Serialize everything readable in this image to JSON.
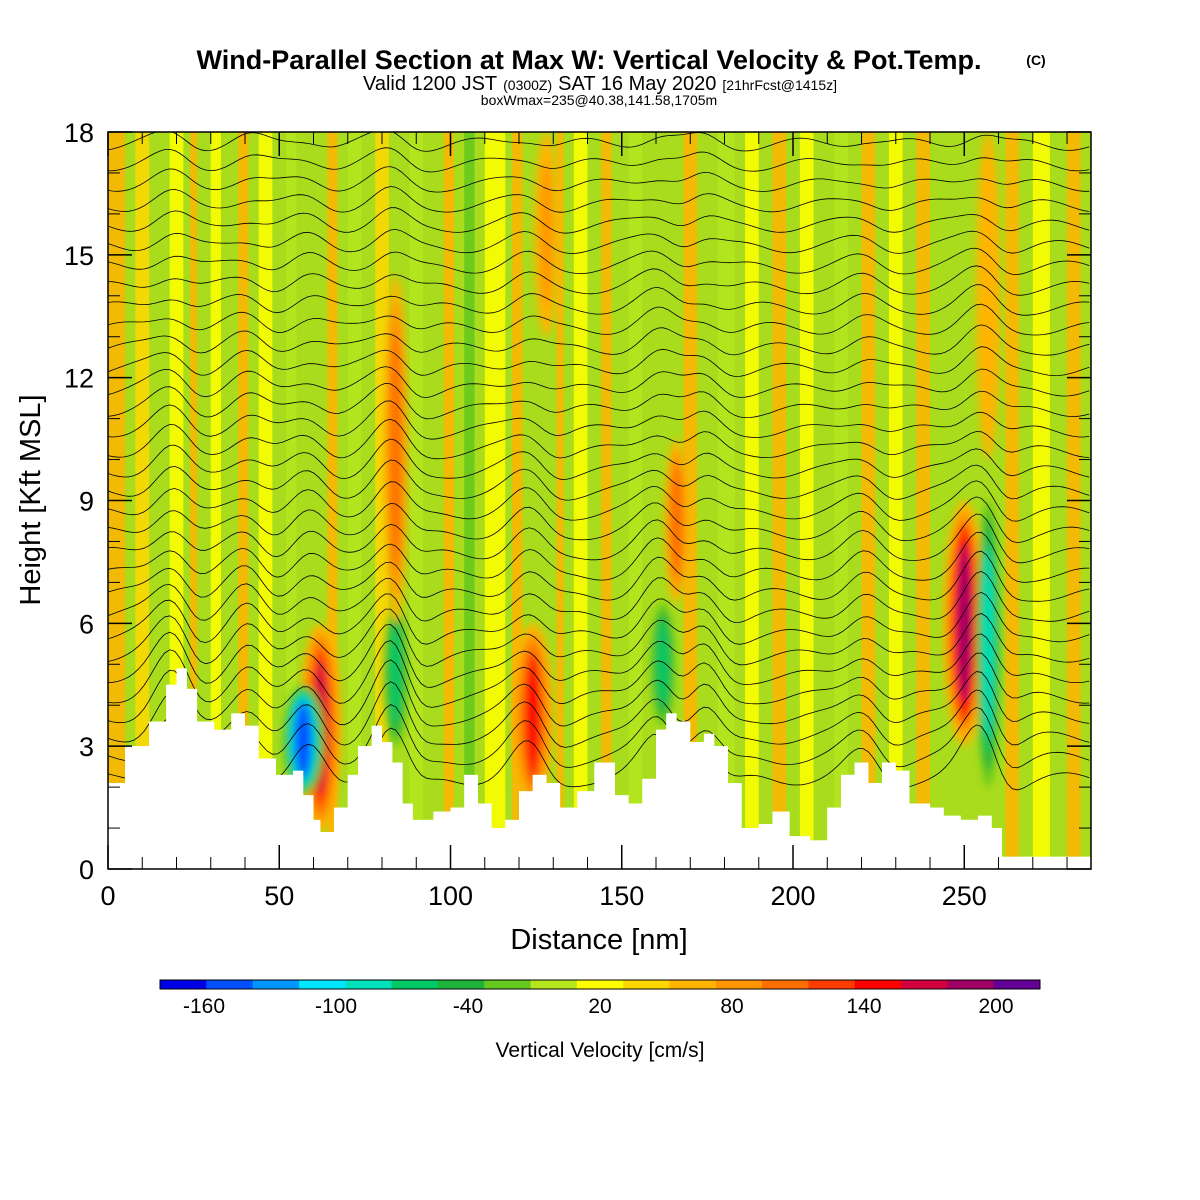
{
  "title": {
    "main": "Wind-Parallel Section at Max W: Vertical Velocity & Pot.Temp.",
    "copyright": "(C)",
    "valid_prefix": "Valid 1200 JST",
    "valid_utc": "(0300Z)",
    "valid_date": "SAT 16 May 2020",
    "forecast": "[21hrFcst@1415z]",
    "box": "boxWmax=235@40.38,141.58,1705m"
  },
  "chart_data": {
    "type": "heatmap",
    "xlabel": "Distance [nm]",
    "ylabel": "Height [Kft MSL]",
    "xlim": [
      0,
      287
    ],
    "ylim": [
      0,
      18
    ],
    "x_ticks": [
      "0",
      "50",
      "100",
      "150",
      "200",
      "250"
    ],
    "y_ticks": [
      "0",
      "3",
      "6",
      "9",
      "12",
      "15",
      "18"
    ],
    "colorbar": {
      "label": "Vertical Velocity [cm/s]",
      "range": [
        -180,
        220
      ],
      "step": 20,
      "tick_labels": [
        "-160",
        "-100",
        "-40",
        "20",
        "80",
        "140",
        "200"
      ],
      "colors": [
        "#0000e6",
        "#0050ff",
        "#0096ff",
        "#00e6ff",
        "#00e1be",
        "#00c864",
        "#1eb43c",
        "#64c81e",
        "#b4e61e",
        "#ffff00",
        "#ffd700",
        "#ffb400",
        "#ff9600",
        "#ff6e00",
        "#ff3c00",
        "#ff0000",
        "#d2003c",
        "#a00064",
        "#640096"
      ]
    },
    "terrain_kft": [
      [
        0,
        2.1
      ],
      [
        5,
        3.0
      ],
      [
        12,
        3.6
      ],
      [
        17,
        4.5
      ],
      [
        20,
        4.9
      ],
      [
        23,
        4.4
      ],
      [
        26,
        3.6
      ],
      [
        31,
        3.4
      ],
      [
        36,
        3.8
      ],
      [
        40,
        3.5
      ],
      [
        44,
        2.7
      ],
      [
        49,
        2.3
      ],
      [
        54,
        2.4
      ],
      [
        57,
        1.8
      ],
      [
        60,
        1.2
      ],
      [
        62,
        0.9
      ],
      [
        66,
        1.5
      ],
      [
        70,
        2.3
      ],
      [
        73,
        3.0
      ],
      [
        77,
        3.5
      ],
      [
        80,
        3.1
      ],
      [
        83,
        2.6
      ],
      [
        86,
        1.6
      ],
      [
        89,
        1.2
      ],
      [
        95,
        1.4
      ],
      [
        100,
        1.5
      ],
      [
        104,
        2.3
      ],
      [
        108,
        1.6
      ],
      [
        112,
        1.0
      ],
      [
        116,
        1.2
      ],
      [
        120,
        1.9
      ],
      [
        124,
        2.3
      ],
      [
        128,
        2.1
      ],
      [
        132,
        1.5
      ],
      [
        137,
        1.9
      ],
      [
        142,
        2.6
      ],
      [
        148,
        1.8
      ],
      [
        152,
        1.6
      ],
      [
        156,
        2.2
      ],
      [
        160,
        3.4
      ],
      [
        163,
        3.8
      ],
      [
        166,
        3.6
      ],
      [
        170,
        3.1
      ],
      [
        174,
        3.3
      ],
      [
        177,
        3.0
      ],
      [
        181,
        2.1
      ],
      [
        185,
        1.0
      ],
      [
        190,
        1.1
      ],
      [
        194,
        1.4
      ],
      [
        199,
        0.8
      ],
      [
        205,
        0.7
      ],
      [
        210,
        1.5
      ],
      [
        214,
        2.3
      ],
      [
        218,
        2.6
      ],
      [
        222,
        2.1
      ],
      [
        226,
        2.6
      ],
      [
        230,
        2.4
      ],
      [
        234,
        1.6
      ],
      [
        240,
        1.5
      ],
      [
        244,
        1.3
      ],
      [
        249,
        1.2
      ],
      [
        254,
        1.3
      ],
      [
        258,
        1.0
      ],
      [
        261,
        0.3
      ],
      [
        287,
        0.3
      ]
    ],
    "vertical_velocity_features": [
      {
        "x": 62,
        "z_range": [
          0.9,
          6.0
        ],
        "w_cm_s": 140
      },
      {
        "x": 57,
        "z_range": [
          1.8,
          4.5
        ],
        "w_cm_s": -160
      },
      {
        "x": 84,
        "z_range": [
          3.0,
          6.5
        ],
        "w_cm_s": -80
      },
      {
        "x": 84,
        "z_range": [
          6.0,
          14.5
        ],
        "w_cm_s": 80
      },
      {
        "x": 124,
        "z_range": [
          1.5,
          6.0
        ],
        "w_cm_s": 120
      },
      {
        "x": 128,
        "z_range": [
          13.0,
          18.0
        ],
        "w_cm_s": 60
      },
      {
        "x": 162,
        "z_range": [
          3.5,
          6.5
        ],
        "w_cm_s": -80
      },
      {
        "x": 166,
        "z_range": [
          6.5,
          10.5
        ],
        "w_cm_s": 80
      },
      {
        "x": 250,
        "z_range": [
          3.0,
          9.0
        ],
        "w_cm_s": 160
      },
      {
        "x": 257,
        "z_range": [
          2.0,
          9.0
        ],
        "w_cm_s": -100
      },
      {
        "x": 257,
        "z_range": [
          10.0,
          18.0
        ],
        "w_cm_s": 40
      }
    ]
  }
}
